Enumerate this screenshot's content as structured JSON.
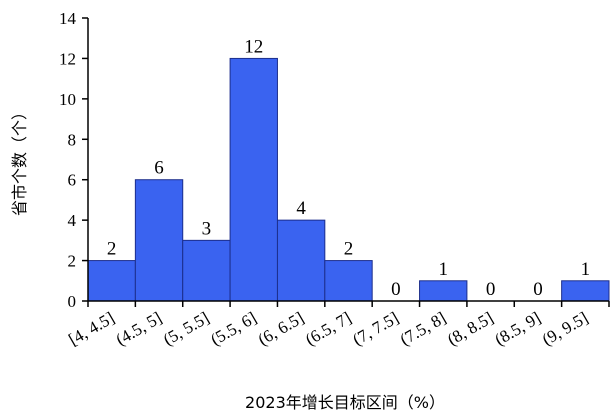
{
  "chart_data": {
    "type": "bar",
    "categories": [
      "[4, 4.5]",
      "(4.5, 5]",
      "(5, 5.5]",
      "(5.5, 6]",
      "(6, 6.5]",
      "(6.5, 7]",
      "(7, 7.5]",
      "(7.5, 8]",
      "(8, 8.5]",
      "(8.5, 9]",
      "(9, 9.5]"
    ],
    "values": [
      2,
      6,
      3,
      12,
      4,
      2,
      0,
      1,
      0,
      0,
      1
    ],
    "xlabel": "2023年增长目标区间（%）",
    "ylabel": "省市个数（个）",
    "ylim": [
      0,
      14
    ],
    "yticks": [
      0,
      2,
      4,
      6,
      8,
      10,
      12,
      14
    ],
    "data_labels": true,
    "grid": false,
    "colors": {
      "bar": "#3a63f0",
      "bar_edge": "#1c2e8c",
      "axis": "#000000"
    }
  }
}
